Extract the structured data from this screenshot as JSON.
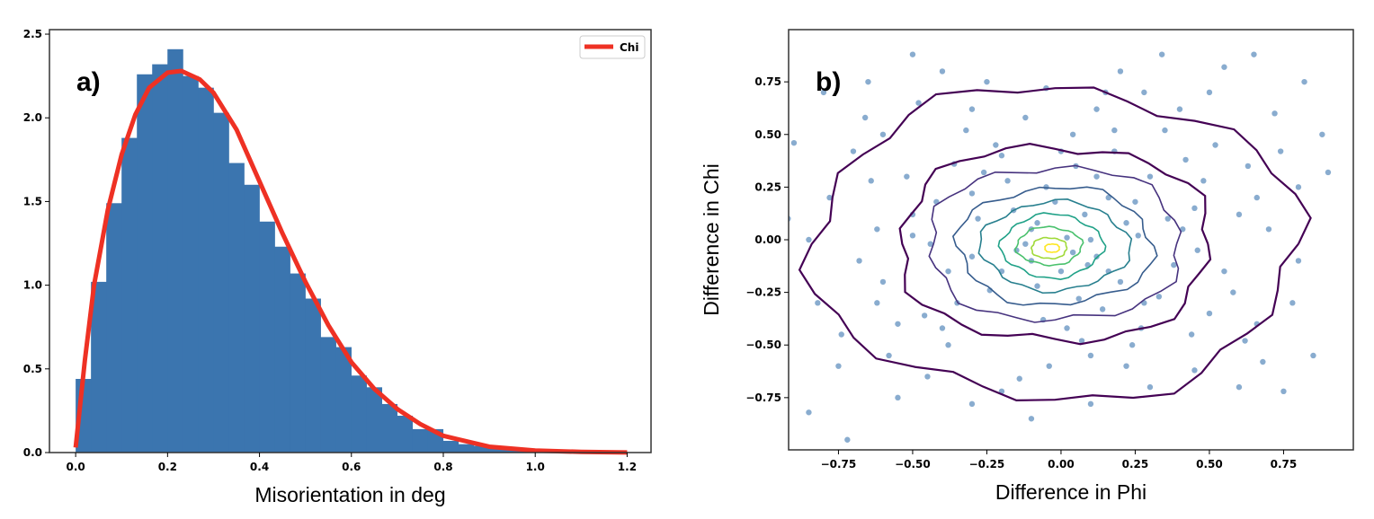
{
  "chart_data": [
    {
      "type": "bar",
      "panel_label": "a)",
      "xlabel": "Misorientation in deg",
      "ylabel": "",
      "xlim": [
        -0.057,
        1.252
      ],
      "ylim": [
        0,
        2.527
      ],
      "xticks": [
        "0.0",
        "0.2",
        "0.4",
        "0.6",
        "0.8",
        "1.0",
        "1.2"
      ],
      "xtick_values": [
        0,
        0.2,
        0.4,
        0.6,
        0.8,
        1.0,
        1.2
      ],
      "yticks": [
        "0.0",
        "0.5",
        "1.0",
        "1.5",
        "2.0",
        "2.5"
      ],
      "ytick_values": [
        0,
        0.5,
        1.0,
        1.5,
        2.0,
        2.5
      ],
      "bin_width": 0.0333,
      "bin_start": 0,
      "values": [
        0.44,
        1.02,
        1.49,
        1.88,
        2.26,
        2.32,
        2.41,
        2.25,
        2.18,
        2.03,
        1.73,
        1.6,
        1.38,
        1.23,
        1.07,
        0.92,
        0.69,
        0.63,
        0.46,
        0.39,
        0.29,
        0.22,
        0.14,
        0.14,
        0.07,
        0.05,
        0.04,
        0.025,
        0.015,
        0.01,
        0.005,
        0.003,
        0.002,
        0.001,
        0.001,
        0.0005
      ],
      "bar_color": "#3b75af",
      "legend": {
        "position": "top-right",
        "entries": [
          {
            "name": "Chi",
            "color": "#ee3124"
          }
        ]
      },
      "curve": {
        "name": "Chi",
        "color": "#ee3124",
        "x": [
          0,
          0.02,
          0.04,
          0.07,
          0.1,
          0.13,
          0.16,
          0.2,
          0.23,
          0.27,
          0.3,
          0.35,
          0.4,
          0.45,
          0.5,
          0.55,
          0.6,
          0.65,
          0.7,
          0.75,
          0.8,
          0.9,
          1.0,
          1.1,
          1.2
        ],
        "y": [
          0.03,
          0.55,
          1.0,
          1.45,
          1.78,
          2.02,
          2.18,
          2.27,
          2.28,
          2.23,
          2.15,
          1.93,
          1.62,
          1.31,
          1.02,
          0.76,
          0.54,
          0.38,
          0.26,
          0.17,
          0.1,
          0.035,
          0.012,
          0.004,
          0.001
        ]
      }
    },
    {
      "type": "scatter",
      "panel_label": "b)",
      "xlabel": "Difference in Phi",
      "ylabel": "Difference in Chi",
      "xlim": [
        -0.918,
        0.985
      ],
      "ylim": [
        -0.998,
        0.998
      ],
      "xticks": [
        "−0.75",
        "−0.50",
        "−0.25",
        "0.00",
        "0.25",
        "0.50",
        "0.75"
      ],
      "xtick_values": [
        -0.75,
        -0.5,
        -0.25,
        0,
        0.25,
        0.5,
        0.75
      ],
      "yticks": [
        "−0.75",
        "−0.50",
        "−0.25",
        "0.00",
        "0.25",
        "0.50",
        "0.75"
      ],
      "ytick_values": [
        -0.75,
        -0.5,
        -0.25,
        0,
        0.25,
        0.5,
        0.75
      ],
      "point_color": "#3b75af",
      "points": [
        [
          0.02,
          0.01
        ],
        [
          -0.1,
          0.05
        ],
        [
          0.12,
          -0.08
        ],
        [
          -0.2,
          -0.15
        ],
        [
          0.25,
          0.18
        ],
        [
          -0.3,
          0.22
        ],
        [
          0.33,
          -0.27
        ],
        [
          0.05,
          0.35
        ],
        [
          -0.06,
          -0.38
        ],
        [
          0.41,
          0.05
        ],
        [
          -0.44,
          -0.02
        ],
        [
          0.18,
          0.42
        ],
        [
          -0.22,
          0.45
        ],
        [
          0.5,
          -0.35
        ],
        [
          -0.52,
          0.3
        ],
        [
          0.6,
          0.12
        ],
        [
          -0.6,
          -0.2
        ],
        [
          0.1,
          -0.55
        ],
        [
          -0.12,
          0.58
        ],
        [
          0.35,
          0.52
        ],
        [
          -0.38,
          -0.5
        ],
        [
          0.66,
          -0.4
        ],
        [
          -0.7,
          0.42
        ],
        [
          0.72,
          0.6
        ],
        [
          -0.75,
          -0.6
        ],
        [
          0.15,
          0.7
        ],
        [
          -0.2,
          -0.72
        ],
        [
          0.45,
          -0.62
        ],
        [
          -0.48,
          0.65
        ],
        [
          0.8,
          0.25
        ],
        [
          -0.82,
          -0.3
        ],
        [
          0.88,
          0.5
        ],
        [
          -0.9,
          0.46
        ],
        [
          0.08,
          0.12
        ],
        [
          -0.15,
          -0.05
        ],
        [
          0.2,
          -0.2
        ],
        [
          -0.28,
          0.1
        ],
        [
          0.3,
          0.3
        ],
        [
          -0.05,
          0.25
        ],
        [
          0.14,
          -0.33
        ],
        [
          -0.35,
          -0.3
        ],
        [
          0.38,
          -0.12
        ],
        [
          -0.42,
          0.18
        ],
        [
          0.22,
          0.08
        ],
        [
          -0.18,
          0.28
        ],
        [
          0.27,
          -0.42
        ],
        [
          -0.08,
          -0.22
        ],
        [
          0.48,
          0.28
        ],
        [
          -0.55,
          -0.4
        ],
        [
          0.55,
          -0.15
        ],
        [
          -0.62,
          0.05
        ],
        [
          0.63,
          0.35
        ],
        [
          -0.32,
          0.52
        ],
        [
          0.07,
          -0.48
        ],
        [
          0.4,
          0.62
        ],
        [
          -0.45,
          -0.65
        ],
        [
          0.68,
          -0.58
        ],
        [
          -0.66,
          0.58
        ],
        [
          0.3,
          -0.7
        ],
        [
          -0.25,
          0.75
        ],
        [
          0.34,
          0.88
        ],
        [
          0.65,
          0.88
        ],
        [
          -0.85,
          -0.82
        ],
        [
          -0.72,
          -0.95
        ],
        [
          0.78,
          -0.3
        ],
        [
          -0.78,
          0.2
        ],
        [
          0.85,
          -0.55
        ],
        [
          0.9,
          0.32
        ],
        [
          -0.92,
          0.1
        ],
        [
          0.0,
          -0.15
        ],
        [
          -0.02,
          0.18
        ],
        [
          0.16,
          0.2
        ],
        [
          -0.24,
          -0.24
        ],
        [
          0.1,
          0.0
        ],
        [
          -0.1,
          -0.1
        ],
        [
          0.26,
          0.02
        ],
        [
          -0.3,
          -0.08
        ],
        [
          0.06,
          -0.28
        ],
        [
          0.12,
          0.3
        ],
        [
          -0.36,
          0.36
        ],
        [
          0.44,
          -0.45
        ],
        [
          -0.5,
          0.12
        ],
        [
          0.52,
          0.45
        ],
        [
          -0.58,
          -0.55
        ],
        [
          0.58,
          -0.25
        ],
        [
          -0.64,
          0.28
        ],
        [
          0.7,
          0.05
        ],
        [
          -0.68,
          -0.1
        ],
        [
          0.04,
          0.5
        ],
        [
          -0.04,
          -0.6
        ],
        [
          0.22,
          -0.6
        ],
        [
          -0.3,
          0.62
        ],
        [
          0.5,
          0.7
        ],
        [
          -0.55,
          -0.75
        ],
        [
          0.6,
          -0.7
        ],
        [
          -0.4,
          0.8
        ],
        [
          0.2,
          0.8
        ],
        [
          -0.1,
          -0.85
        ],
        [
          0.75,
          -0.72
        ],
        [
          -0.8,
          0.7
        ],
        [
          0.82,
          0.75
        ],
        [
          -0.65,
          0.75
        ],
        [
          0.36,
          0.1
        ],
        [
          -0.38,
          -0.15
        ],
        [
          0.16,
          -0.15
        ],
        [
          -0.16,
          0.14
        ],
        [
          0.28,
          -0.3
        ],
        [
          -0.26,
          0.32
        ],
        [
          0.42,
          0.38
        ],
        [
          -0.46,
          -0.36
        ],
        [
          0.0,
          0.42
        ],
        [
          0.02,
          -0.42
        ],
        [
          0.46,
          -0.05
        ],
        [
          -0.5,
          0.02
        ],
        [
          0.62,
          -0.48
        ],
        [
          -0.6,
          0.5
        ],
        [
          0.74,
          0.42
        ],
        [
          -0.74,
          -0.45
        ],
        [
          0.8,
          -0.1
        ],
        [
          -0.85,
          0.0
        ],
        [
          0.12,
          0.62
        ],
        [
          -0.14,
          -0.66
        ],
        [
          0.28,
          0.7
        ],
        [
          -0.3,
          -0.78
        ],
        [
          0.55,
          0.82
        ],
        [
          -0.5,
          0.88
        ],
        [
          0.1,
          -0.78
        ],
        [
          -0.05,
          0.72
        ],
        [
          0.45,
          0.15
        ],
        [
          -0.4,
          -0.42
        ],
        [
          0.24,
          -0.5
        ],
        [
          -0.2,
          0.4
        ],
        [
          0.18,
          0.52
        ],
        [
          -0.62,
          -0.3
        ],
        [
          0.66,
          0.2
        ],
        [
          0.04,
          -0.06
        ],
        [
          -0.08,
          0.08
        ],
        [
          0.09,
          -0.12
        ],
        [
          -0.12,
          -0.02
        ]
      ],
      "contours": [
        {
          "cx": -0.02,
          "cy": -0.02,
          "rx": 0.82,
          "ry": 0.74,
          "color": "#440154"
        },
        {
          "cx": -0.02,
          "cy": -0.02,
          "rx": 0.53,
          "ry": 0.47,
          "color": "#440154"
        },
        {
          "cx": -0.02,
          "cy": -0.02,
          "rx": 0.43,
          "ry": 0.37,
          "color": "#46327e"
        },
        {
          "cx": -0.02,
          "cy": -0.03,
          "rx": 0.33,
          "ry": 0.28,
          "color": "#365c8d"
        },
        {
          "cx": -0.02,
          "cy": -0.03,
          "rx": 0.25,
          "ry": 0.21,
          "color": "#277f8e"
        },
        {
          "cx": -0.03,
          "cy": -0.03,
          "rx": 0.17,
          "ry": 0.15,
          "color": "#1fa187"
        },
        {
          "cx": -0.04,
          "cy": -0.03,
          "rx": 0.11,
          "ry": 0.09,
          "color": "#4ac16d"
        },
        {
          "cx": -0.04,
          "cy": -0.04,
          "rx": 0.06,
          "ry": 0.05,
          "color": "#a0da39"
        },
        {
          "cx": -0.03,
          "cy": -0.04,
          "rx": 0.025,
          "ry": 0.02,
          "color": "#fde725"
        }
      ]
    }
  ]
}
